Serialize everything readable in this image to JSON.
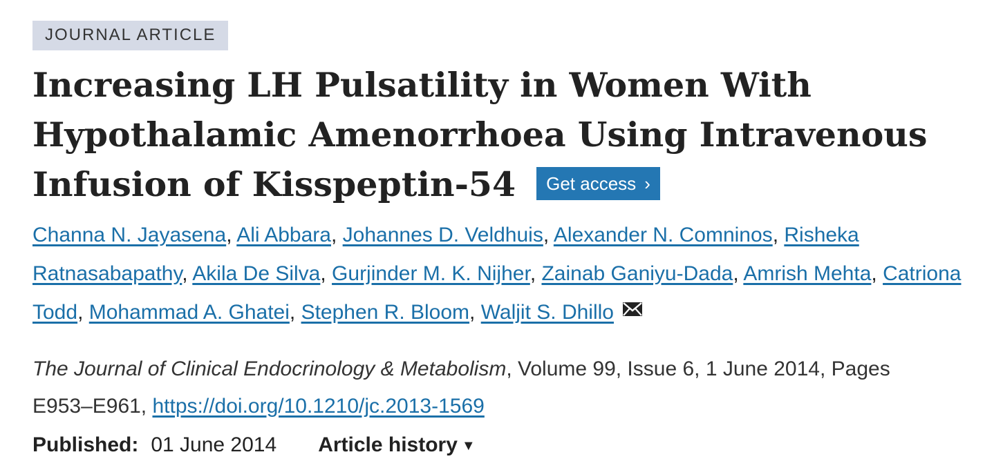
{
  "badge": "JOURNAL ARTICLE",
  "title": "Increasing LH Pulsatility in Women With Hypothalamic Amenorrhoea Using Intravenous Infusion of Kisspeptin-54",
  "get_access": {
    "label": "Get access",
    "icon": "chevron-right-icon",
    "color": "#2477b3"
  },
  "authors": [
    "Channa N. Jayasena",
    "Ali Abbara",
    "Johannes D. Veldhuis",
    "Alexander N. Comninos",
    "Risheka Ratnasabapathy",
    "Akila De Silva",
    "Gurjinder M. K. Nijher",
    "Zainab Ganiyu-Dada",
    "Amrish Mehta",
    "Catriona Todd",
    "Mohammad A. Ghatei",
    "Stephen R. Bloom",
    "Waljit S. Dhillo"
  ],
  "author_separator": ", ",
  "corresponding_icon": "envelope-icon",
  "citation": {
    "journal": "The Journal of Clinical Endocrinology & Metabolism",
    "details": ", Volume 99, Issue 6, 1 June 2014, Pages E953–E961, ",
    "doi": "https://doi.org/10.1210/jc.2013-1569"
  },
  "published": {
    "label": "Published:",
    "date": "01 June 2014"
  },
  "article_history": {
    "label": "Article history",
    "icon": "triangle-down-icon"
  },
  "colors": {
    "link": "#1a6fa8",
    "badge_bg": "#d5dae6",
    "text": "#222222"
  }
}
